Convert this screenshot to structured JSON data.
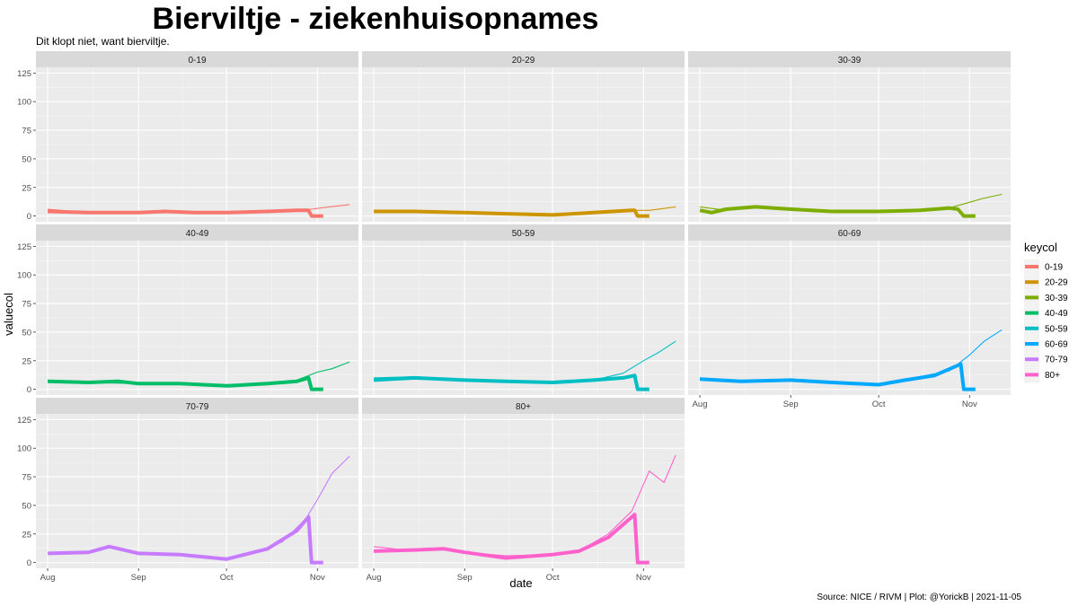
{
  "chart_data": {
    "type": "line",
    "title": "Bierviltje - ziekenhuisopnames",
    "subtitle": "Dit klopt niet, want bierviltje.",
    "xlabel": "date",
    "ylabel": "valuecol",
    "caption": "Source: NICE / RIVM | Plot: @YorickB |  2021-11-05",
    "legend_title": "keycol",
    "legend_position": "right",
    "grid": true,
    "ylim": [
      -5,
      130
    ],
    "y_ticks": [
      0,
      25,
      50,
      75,
      100,
      125
    ],
    "x_range": [
      "2021-07-28",
      "2021-11-15"
    ],
    "x_ticks": [
      {
        "date": "2021-08-01",
        "label": "Aug"
      },
      {
        "date": "2021-09-01",
        "label": "Sep"
      },
      {
        "date": "2021-10-01",
        "label": "Oct"
      },
      {
        "date": "2021-11-01",
        "label": "Nov"
      }
    ],
    "facets": [
      {
        "key": "0-19",
        "color": "#F8766D",
        "thin": [
          [
            "2021-08-01",
            6
          ],
          [
            "2021-08-15",
            3
          ],
          [
            "2021-09-01",
            3
          ],
          [
            "2021-09-15",
            4
          ],
          [
            "2021-10-01",
            3
          ],
          [
            "2021-10-15",
            4
          ],
          [
            "2021-10-25",
            5
          ],
          [
            "2021-10-30",
            6
          ],
          [
            "2021-11-05",
            8
          ],
          [
            "2021-11-12",
            10
          ]
        ],
        "thick": [
          [
            "2021-08-01",
            4
          ],
          [
            "2021-08-15",
            3
          ],
          [
            "2021-09-01",
            3
          ],
          [
            "2021-09-10",
            4
          ],
          [
            "2021-09-20",
            3
          ],
          [
            "2021-10-01",
            3
          ],
          [
            "2021-10-15",
            4
          ],
          [
            "2021-10-25",
            5
          ],
          [
            "2021-10-29",
            5
          ],
          [
            "2021-10-30",
            0
          ],
          [
            "2021-11-03",
            0
          ]
        ]
      },
      {
        "key": "20-29",
        "color": "#CD9600",
        "thin": [
          [
            "2021-08-01",
            5
          ],
          [
            "2021-08-15",
            4
          ],
          [
            "2021-09-01",
            3
          ],
          [
            "2021-09-15",
            2
          ],
          [
            "2021-10-01",
            2
          ],
          [
            "2021-10-15",
            3
          ],
          [
            "2021-10-28",
            5
          ],
          [
            "2021-11-03",
            5
          ],
          [
            "2021-11-12",
            8
          ]
        ],
        "thick": [
          [
            "2021-08-01",
            4
          ],
          [
            "2021-08-15",
            4
          ],
          [
            "2021-09-01",
            3
          ],
          [
            "2021-09-15",
            2
          ],
          [
            "2021-10-01",
            1
          ],
          [
            "2021-10-15",
            3
          ],
          [
            "2021-10-28",
            5
          ],
          [
            "2021-10-29",
            5
          ],
          [
            "2021-10-30",
            0
          ],
          [
            "2021-11-03",
            0
          ]
        ]
      },
      {
        "key": "30-39",
        "color": "#7CAE00",
        "thin": [
          [
            "2021-08-01",
            8
          ],
          [
            "2021-08-10",
            5
          ],
          [
            "2021-08-20",
            8
          ],
          [
            "2021-09-01",
            6
          ],
          [
            "2021-09-15",
            4
          ],
          [
            "2021-10-01",
            4
          ],
          [
            "2021-10-15",
            5
          ],
          [
            "2021-10-25",
            7
          ],
          [
            "2021-11-01",
            12
          ],
          [
            "2021-11-05",
            15
          ],
          [
            "2021-11-12",
            19
          ]
        ],
        "thick": [
          [
            "2021-08-01",
            5
          ],
          [
            "2021-08-05",
            3
          ],
          [
            "2021-08-10",
            6
          ],
          [
            "2021-08-20",
            8
          ],
          [
            "2021-09-01",
            6
          ],
          [
            "2021-09-15",
            4
          ],
          [
            "2021-10-01",
            4
          ],
          [
            "2021-10-15",
            5
          ],
          [
            "2021-10-25",
            7
          ],
          [
            "2021-10-28",
            6
          ],
          [
            "2021-10-30",
            0
          ],
          [
            "2021-11-03",
            0
          ]
        ]
      },
      {
        "key": "40-49",
        "color": "#00BE67",
        "thin": [
          [
            "2021-08-01",
            8
          ],
          [
            "2021-08-15",
            6
          ],
          [
            "2021-09-01",
            5
          ],
          [
            "2021-09-15",
            5
          ],
          [
            "2021-10-01",
            4
          ],
          [
            "2021-10-15",
            5
          ],
          [
            "2021-10-25",
            8
          ],
          [
            "2021-11-01",
            15
          ],
          [
            "2021-11-06",
            18
          ],
          [
            "2021-11-12",
            24
          ]
        ],
        "thick": [
          [
            "2021-08-01",
            7
          ],
          [
            "2021-08-15",
            6
          ],
          [
            "2021-08-25",
            7
          ],
          [
            "2021-09-01",
            5
          ],
          [
            "2021-09-15",
            5
          ],
          [
            "2021-10-01",
            3
          ],
          [
            "2021-10-15",
            5
          ],
          [
            "2021-10-25",
            7
          ],
          [
            "2021-10-29",
            10
          ],
          [
            "2021-10-30",
            0
          ],
          [
            "2021-11-03",
            0
          ]
        ]
      },
      {
        "key": "50-59",
        "color": "#00BFC4",
        "thin": [
          [
            "2021-08-01",
            10
          ],
          [
            "2021-08-15",
            11
          ],
          [
            "2021-09-01",
            8
          ],
          [
            "2021-09-15",
            7
          ],
          [
            "2021-10-01",
            6
          ],
          [
            "2021-10-15",
            8
          ],
          [
            "2021-10-25",
            14
          ],
          [
            "2021-11-01",
            25
          ],
          [
            "2021-11-06",
            32
          ],
          [
            "2021-11-12",
            42
          ]
        ],
        "thick": [
          [
            "2021-08-01",
            8
          ],
          [
            "2021-08-15",
            10
          ],
          [
            "2021-09-01",
            8
          ],
          [
            "2021-09-15",
            7
          ],
          [
            "2021-10-01",
            6
          ],
          [
            "2021-10-15",
            8
          ],
          [
            "2021-10-25",
            10
          ],
          [
            "2021-10-29",
            12
          ],
          [
            "2021-10-30",
            0
          ],
          [
            "2021-11-03",
            0
          ]
        ]
      },
      {
        "key": "60-69",
        "color": "#00A9FF",
        "thin": [
          [
            "2021-08-01",
            10
          ],
          [
            "2021-08-15",
            7
          ],
          [
            "2021-09-01",
            7
          ],
          [
            "2021-09-15",
            6
          ],
          [
            "2021-10-01",
            4
          ],
          [
            "2021-10-15",
            11
          ],
          [
            "2021-10-25",
            16
          ],
          [
            "2021-11-01",
            30
          ],
          [
            "2021-11-06",
            42
          ],
          [
            "2021-11-12",
            52
          ]
        ],
        "thick": [
          [
            "2021-08-01",
            9
          ],
          [
            "2021-08-15",
            7
          ],
          [
            "2021-09-01",
            8
          ],
          [
            "2021-09-15",
            6
          ],
          [
            "2021-10-01",
            4
          ],
          [
            "2021-10-10",
            8
          ],
          [
            "2021-10-20",
            12
          ],
          [
            "2021-10-29",
            22
          ],
          [
            "2021-10-30",
            0
          ],
          [
            "2021-11-03",
            0
          ]
        ]
      },
      {
        "key": "70-79",
        "color": "#C77CFF",
        "thin": [
          [
            "2021-08-01",
            9
          ],
          [
            "2021-08-15",
            8
          ],
          [
            "2021-08-22",
            13
          ],
          [
            "2021-09-01",
            8
          ],
          [
            "2021-09-15",
            7
          ],
          [
            "2021-10-01",
            4
          ],
          [
            "2021-10-10",
            8
          ],
          [
            "2021-10-20",
            18
          ],
          [
            "2021-10-28",
            38
          ],
          [
            "2021-11-01",
            55
          ],
          [
            "2021-11-06",
            78
          ],
          [
            "2021-11-12",
            93
          ]
        ],
        "thick": [
          [
            "2021-08-01",
            8
          ],
          [
            "2021-08-15",
            9
          ],
          [
            "2021-08-22",
            14
          ],
          [
            "2021-09-01",
            8
          ],
          [
            "2021-09-15",
            7
          ],
          [
            "2021-10-01",
            3
          ],
          [
            "2021-10-15",
            12
          ],
          [
            "2021-10-25",
            28
          ],
          [
            "2021-10-29",
            40
          ],
          [
            "2021-10-30",
            0
          ],
          [
            "2021-11-03",
            0
          ]
        ]
      },
      {
        "key": "80+",
        "color": "#FF61CC",
        "thin": [
          [
            "2021-08-01",
            14
          ],
          [
            "2021-08-15",
            10
          ],
          [
            "2021-08-25",
            12
          ],
          [
            "2021-09-01",
            9
          ],
          [
            "2021-09-15",
            6
          ],
          [
            "2021-10-01",
            7
          ],
          [
            "2021-10-10",
            10
          ],
          [
            "2021-10-20",
            25
          ],
          [
            "2021-10-28",
            45
          ],
          [
            "2021-11-03",
            80
          ],
          [
            "2021-11-08",
            70
          ],
          [
            "2021-11-12",
            94
          ]
        ],
        "thick": [
          [
            "2021-08-01",
            10
          ],
          [
            "2021-08-15",
            11
          ],
          [
            "2021-08-25",
            12
          ],
          [
            "2021-09-01",
            9
          ],
          [
            "2021-09-15",
            4
          ],
          [
            "2021-10-01",
            7
          ],
          [
            "2021-10-10",
            10
          ],
          [
            "2021-10-20",
            22
          ],
          [
            "2021-10-29",
            42
          ],
          [
            "2021-10-30",
            0
          ],
          [
            "2021-11-03",
            0
          ]
        ]
      }
    ]
  }
}
